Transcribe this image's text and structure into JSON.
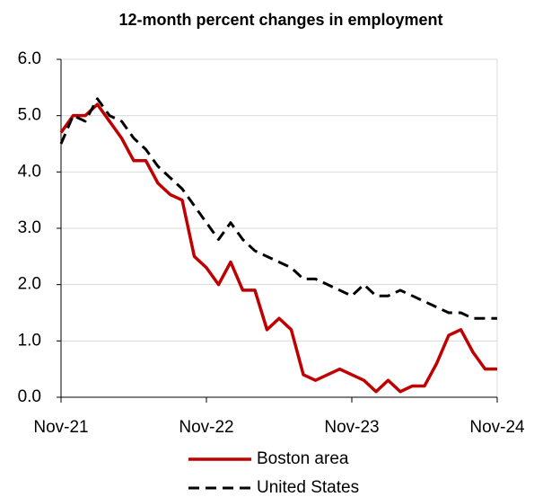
{
  "chart_data": {
    "type": "line",
    "title": "12-month percent changes in employment",
    "categories": [
      "Nov-21",
      null,
      null,
      null,
      null,
      null,
      null,
      null,
      null,
      null,
      null,
      null,
      "Nov-22",
      null,
      null,
      null,
      null,
      null,
      null,
      null,
      null,
      null,
      null,
      null,
      "Nov-23",
      null,
      null,
      null,
      null,
      null,
      null,
      null,
      null,
      null,
      null,
      null,
      "Nov-24"
    ],
    "series": [
      {
        "name": "Boston area",
        "color": "#c00000",
        "dash": false,
        "values": [
          4.7,
          5.0,
          5.0,
          5.2,
          4.9,
          4.6,
          4.2,
          4.2,
          3.8,
          3.6,
          3.5,
          2.5,
          2.3,
          2.0,
          2.4,
          1.9,
          1.9,
          1.2,
          1.4,
          1.2,
          0.4,
          0.3,
          0.4,
          0.5,
          0.4,
          0.3,
          0.1,
          0.3,
          0.1,
          0.2,
          0.2,
          0.6,
          1.1,
          1.2,
          0.8,
          0.5,
          0.5
        ]
      },
      {
        "name": "United States",
        "color": "#000000",
        "dash": true,
        "values": [
          4.5,
          5.0,
          4.9,
          5.3,
          5.0,
          4.9,
          4.6,
          4.4,
          4.1,
          3.9,
          3.7,
          3.4,
          3.1,
          2.8,
          3.1,
          2.8,
          2.6,
          2.5,
          2.4,
          2.3,
          2.1,
          2.1,
          2.0,
          1.9,
          1.8,
          2.0,
          1.8,
          1.8,
          1.9,
          1.8,
          1.7,
          1.6,
          1.5,
          1.5,
          1.4,
          1.4,
          1.4
        ]
      }
    ],
    "ylim": [
      0,
      6
    ],
    "yticks": [
      {
        "value": 0,
        "label": "0.0"
      },
      {
        "value": 1,
        "label": "1.0"
      },
      {
        "value": 2,
        "label": "2.0"
      },
      {
        "value": 3,
        "label": "3.0"
      },
      {
        "value": 4,
        "label": "4.0"
      },
      {
        "value": 5,
        "label": "5.0"
      },
      {
        "value": 6,
        "label": "6.0"
      }
    ],
    "grid": true,
    "legend": "bottom"
  }
}
